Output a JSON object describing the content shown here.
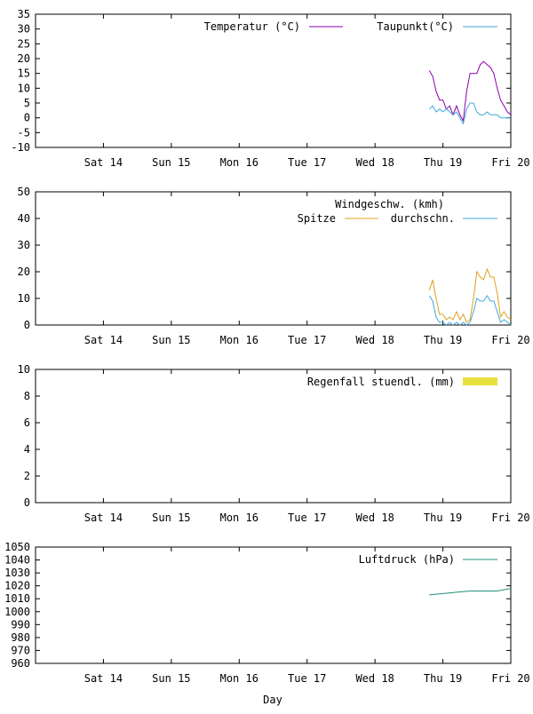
{
  "xlabel": "Day",
  "colors": {
    "temperature": "#8b00a8",
    "dewpoint": "#3fa8d8",
    "gust": "#e0a020",
    "avgwind": "#3fa8d8",
    "rain": "#e8e040",
    "pressure": "#20907a"
  },
  "chart_data": [
    {
      "type": "line",
      "x_ticks": [
        "Sat 14",
        "Sun 15",
        "Mon 16",
        "Tue 17",
        "Wed 18",
        "Thu 19",
        "Fri 20"
      ],
      "ylim": [
        -10,
        35
      ],
      "y_ticks": [
        -10,
        -5,
        0,
        5,
        10,
        15,
        20,
        25,
        30,
        35
      ],
      "xlim": [
        0,
        7
      ],
      "series": [
        {
          "name": "Temperatur (°C)",
          "color_key": "temperature",
          "x": [
            5.8,
            5.85,
            5.9,
            5.95,
            6.0,
            6.05,
            6.1,
            6.15,
            6.2,
            6.25,
            6.3,
            6.35,
            6.4,
            6.45,
            6.5,
            6.55,
            6.6,
            6.65,
            6.7,
            6.75,
            6.8,
            6.85,
            6.9,
            6.95,
            7.0
          ],
          "y": [
            16,
            14,
            9,
            6,
            6,
            3,
            4,
            1,
            4,
            1,
            -1,
            9,
            15,
            15,
            15,
            18,
            19,
            18,
            17,
            15,
            10,
            6,
            4,
            2,
            1
          ]
        },
        {
          "name": "Taupunkt(°C)",
          "color_key": "dewpoint",
          "x": [
            5.8,
            5.85,
            5.9,
            5.95,
            6.0,
            6.05,
            6.1,
            6.15,
            6.2,
            6.25,
            6.3,
            6.35,
            6.4,
            6.45,
            6.5,
            6.55,
            6.6,
            6.65,
            6.7,
            6.75,
            6.8,
            6.85,
            6.9,
            6.95,
            7.0
          ],
          "y": [
            3,
            4,
            2,
            3,
            2,
            3,
            2,
            1,
            2,
            0,
            -2,
            3,
            5,
            5,
            2,
            1,
            1,
            2,
            1,
            1,
            1,
            0,
            0,
            0,
            0
          ]
        }
      ]
    },
    {
      "type": "line",
      "title": "Windgeschw. (kmh)",
      "x_ticks": [
        "Sat 14",
        "Sun 15",
        "Mon 16",
        "Tue 17",
        "Wed 18",
        "Thu 19",
        "Fri 20"
      ],
      "ylim": [
        0,
        50
      ],
      "y_ticks": [
        0,
        10,
        20,
        30,
        40,
        50
      ],
      "xlim": [
        0,
        7
      ],
      "series": [
        {
          "name": "Spitze",
          "color_key": "gust",
          "x": [
            5.8,
            5.85,
            5.9,
            5.95,
            6.0,
            6.05,
            6.1,
            6.15,
            6.2,
            6.25,
            6.3,
            6.35,
            6.4,
            6.45,
            6.5,
            6.55,
            6.6,
            6.65,
            6.7,
            6.75,
            6.8,
            6.85,
            6.9,
            6.95,
            7.0
          ],
          "y": [
            13,
            17,
            10,
            4,
            4,
            2,
            3,
            2,
            5,
            2,
            4,
            1,
            2,
            10,
            20,
            18,
            17,
            21,
            18,
            18,
            12,
            3,
            5,
            3,
            2
          ]
        },
        {
          "name": "durchschn.",
          "color_key": "avgwind",
          "x": [
            5.8,
            5.85,
            5.9,
            5.95,
            6.0,
            6.05,
            6.1,
            6.15,
            6.2,
            6.25,
            6.3,
            6.35,
            6.4,
            6.45,
            6.5,
            6.55,
            6.6,
            6.65,
            6.7,
            6.75,
            6.8,
            6.85,
            6.9,
            6.95,
            7.0
          ],
          "y": [
            11,
            9,
            3,
            1,
            1,
            0,
            1,
            0,
            1,
            0,
            1,
            0,
            1,
            5,
            10,
            9,
            9,
            11,
            9,
            9,
            5,
            1,
            2,
            1,
            0
          ]
        }
      ]
    },
    {
      "type": "bar",
      "x_ticks": [
        "Sat 14",
        "Sun 15",
        "Mon 16",
        "Tue 17",
        "Wed 18",
        "Thu 19",
        "Fri 20"
      ],
      "ylim": [
        0,
        10
      ],
      "y_ticks": [
        0,
        2,
        4,
        6,
        8,
        10
      ],
      "xlim": [
        0,
        7
      ],
      "series": [
        {
          "name": "Regenfall stuendl. (mm)",
          "color_key": "rain",
          "x": [],
          "y": []
        }
      ]
    },
    {
      "type": "line",
      "x_ticks": [
        "Sat 14",
        "Sun 15",
        "Mon 16",
        "Tue 17",
        "Wed 18",
        "Thu 19",
        "Fri 20"
      ],
      "ylim": [
        960,
        1050
      ],
      "y_ticks": [
        960,
        970,
        980,
        990,
        1000,
        1010,
        1020,
        1030,
        1040,
        1050
      ],
      "xlim": [
        0,
        7
      ],
      "series": [
        {
          "name": "Luftdruck (hPa)",
          "color_key": "pressure",
          "x": [
            5.8,
            6.0,
            6.2,
            6.4,
            6.6,
            6.8,
            7.0
          ],
          "y": [
            1013,
            1014,
            1015,
            1016,
            1016,
            1016,
            1018
          ]
        }
      ]
    }
  ]
}
